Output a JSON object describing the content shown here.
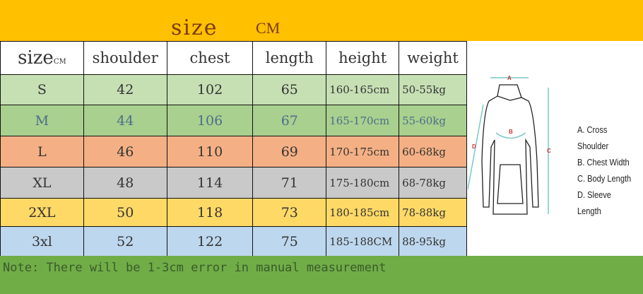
{
  "header": {
    "title": "size",
    "unit": "CM"
  },
  "table": {
    "columns": [
      "size",
      "shoulder",
      "chest",
      "length",
      "height",
      "weight"
    ],
    "size_unit": "CM",
    "rows": [
      {
        "size": "S",
        "shoulder": "42",
        "chest": "102",
        "length": "65",
        "height": "160-165cm",
        "weight": "50-55kg",
        "color": "#C6E0B4"
      },
      {
        "size": "M",
        "shoulder": "44",
        "chest": "106",
        "length": "67",
        "height": "165-170cm",
        "weight": "55-60kg",
        "color": "#A9D08E"
      },
      {
        "size": "L",
        "shoulder": "46",
        "chest": "110",
        "length": "69",
        "height": "170-175cm",
        "weight": "60-68kg",
        "color": "#F4B084"
      },
      {
        "size": "XL",
        "shoulder": "48",
        "chest": "114",
        "length": "71",
        "height": "175-180cm",
        "weight": "68-78kg",
        "color": "#C9C9C9"
      },
      {
        "size": "2XL",
        "shoulder": "50",
        "chest": "118",
        "length": "73",
        "height": "180-185cm",
        "weight": "78-88kg",
        "color": "#FFD966"
      },
      {
        "size": "3xl",
        "shoulder": "52",
        "chest": "122",
        "length": "75",
        "height": "185-188CM",
        "weight": "88-95kg",
        "color": "#BDD7EE"
      }
    ]
  },
  "diagram": {
    "labels": [
      "A",
      "B",
      "C",
      "D"
    ],
    "legend": [
      "A. Cross Shoulder",
      "B. Chest Width",
      "C. Body Length",
      "D. Sleeve Length"
    ]
  },
  "note": "Note: There will be 1-3cm error in manual measurement"
}
